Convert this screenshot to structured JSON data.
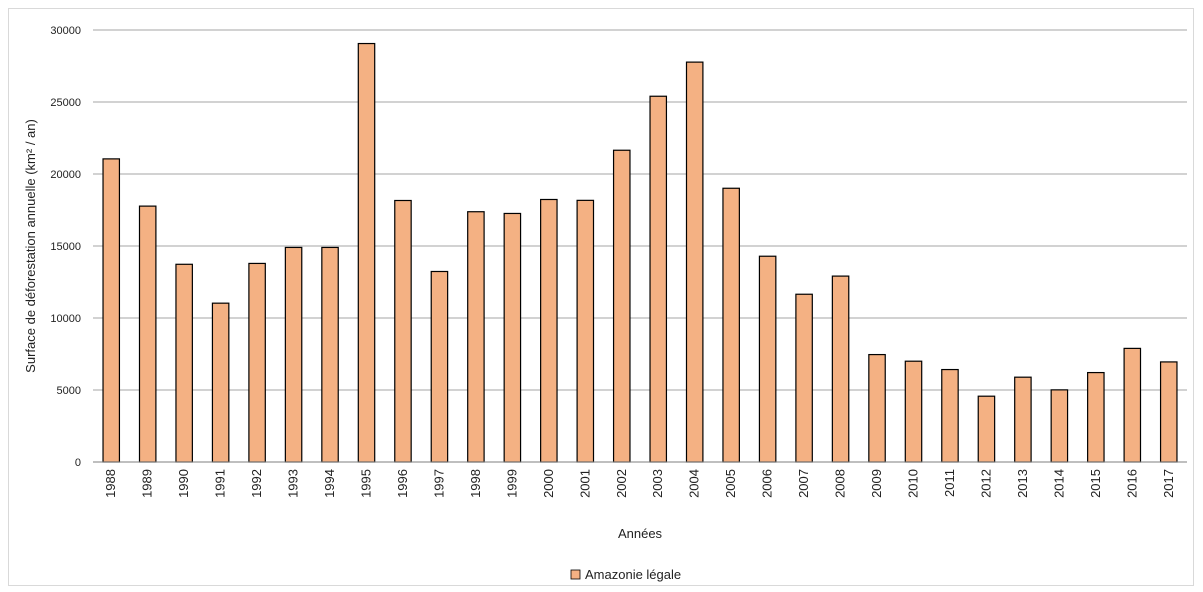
{
  "chart_data": {
    "type": "bar",
    "title": "",
    "xlabel": "Années",
    "ylabel": "Surface de déforestation annuelle (km² / an)",
    "ylim": [
      0,
      30000
    ],
    "yticks": [
      0,
      5000,
      10000,
      15000,
      20000,
      25000,
      30000
    ],
    "grid": true,
    "legend_position": "bottom",
    "categories": [
      "1988",
      "1989",
      "1990",
      "1991",
      "1992",
      "1993",
      "1994",
      "1995",
      "1996",
      "1997",
      "1998",
      "1999",
      "2000",
      "2001",
      "2002",
      "2003",
      "2004",
      "2005",
      "2006",
      "2007",
      "2008",
      "2009",
      "2010",
      "2011",
      "2012",
      "2013",
      "2014",
      "2015",
      "2016",
      "2017"
    ],
    "series": [
      {
        "name": "Amazonie légale",
        "color": "#f4b183",
        "values": [
          21050,
          17770,
          13730,
          11030,
          13790,
          14900,
          14900,
          29060,
          18160,
          13230,
          17380,
          17260,
          18230,
          18170,
          21650,
          25400,
          27770,
          19010,
          14290,
          11650,
          12910,
          7460,
          7000,
          6420,
          4570,
          5890,
          5010,
          6210,
          7890,
          6950
        ]
      }
    ]
  }
}
